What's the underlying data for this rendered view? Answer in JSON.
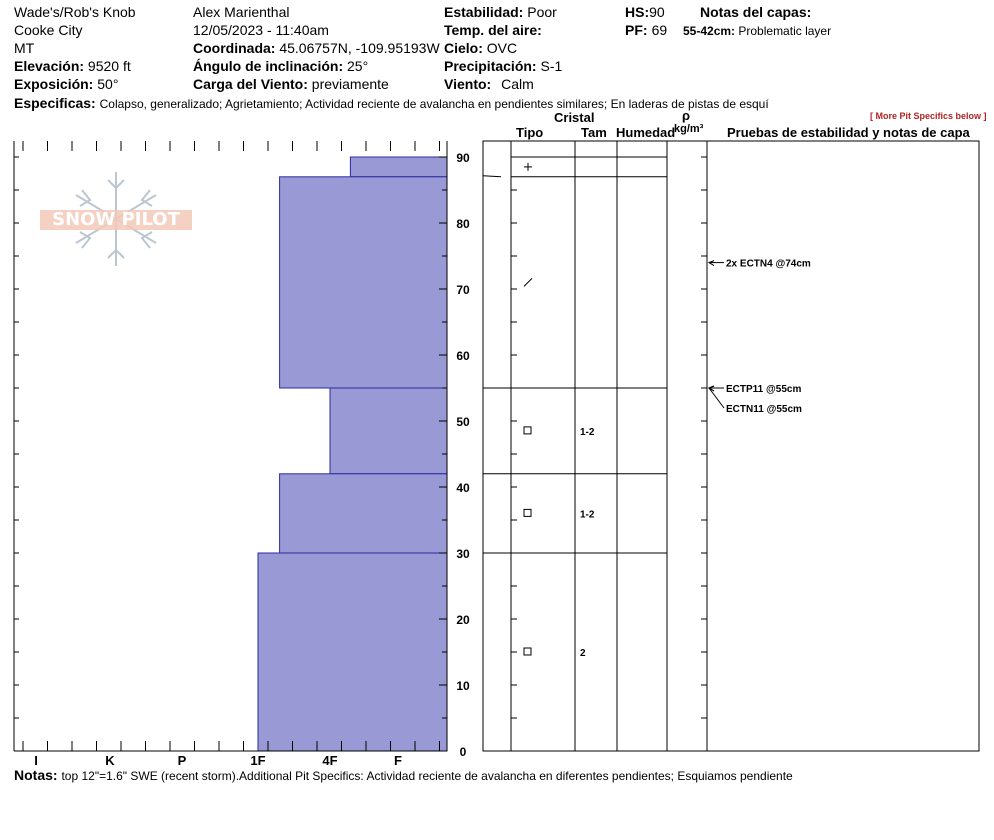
{
  "header": {
    "location": "Wade's/Rob's Knob",
    "city": "Cooke City",
    "state": "MT",
    "elevation_label": "Elevación:",
    "elevation_value": "9520 ft",
    "aspect_label": "Exposición:",
    "aspect_value": "50°",
    "observer": "Alex Marienthal",
    "datetime": "12/05/2023 - 11:40am",
    "coord_label": "Coordinada:",
    "coord_value": "45.06757N, -109.95193W",
    "slope_label": "Ángulo de inclinación:",
    "slope_value": "25°",
    "wind_load_label": "Carga del Viento:",
    "wind_load_value": "previamente",
    "stability_label": "Estabilidad:",
    "stability_value": "Poor",
    "air_temp_label": "Temp. del aire:",
    "air_temp_value": "",
    "sky_label": "Cielo:",
    "sky_value": "OVC",
    "precip_label": "Precipitación:",
    "precip_value": "S-1",
    "wind_label": "Viento:",
    "wind_value": "Calm",
    "hs_label": "HS:",
    "hs_value": "90",
    "pf_label": "PF:",
    "pf_value": "69",
    "layer_notes_label": "Notas del capas:",
    "layer_note_range": "55-42cm:",
    "layer_note_text": "Problematic layer",
    "specifics_label": "Especificas:",
    "specifics_text": "Colapso, generalizado; Agrietamiento; Actividad reciente de avalancha en pendientes similares; En laderas de pistas de esquí",
    "more_specifics": "[ More Pit Specifics below ]"
  },
  "logo": {
    "text": "SNOW PILOT"
  },
  "columns": {
    "cristal": "Cristal",
    "tipo": "Tipo",
    "tam": "Tam",
    "humedad": "Humedad",
    "rho": "ρ",
    "density_unit": "kg/m³",
    "tests_header": "Pruebas de estabilidad y notas de capa"
  },
  "chart_data": {
    "type": "bar",
    "title": "",
    "xlabel": "",
    "ylabel": "",
    "hardness_ticks": [
      "I",
      "K",
      "P",
      "1F",
      "4F",
      "F"
    ],
    "height_ticks": [
      0,
      10,
      20,
      30,
      40,
      50,
      60,
      70,
      80,
      90
    ],
    "ylim": [
      0,
      90
    ],
    "hardness_scale_note": "hardness index: 0=F, 1=4F, 2=1F, 3=P, 4=K, 5=I",
    "layers": [
      {
        "top": 90,
        "bottom": 87,
        "hardness": 0.7
      },
      {
        "top": 87,
        "bottom": 55,
        "hardness": 1.7
      },
      {
        "top": 55,
        "bottom": 42,
        "hardness": 1.0
      },
      {
        "top": 42,
        "bottom": 30,
        "hardness": 1.7
      },
      {
        "top": 30,
        "bottom": 0,
        "hardness": 2.0
      }
    ],
    "layer_lines": [
      90,
      87,
      55,
      42,
      30
    ],
    "grains": [
      {
        "height": 88.5,
        "symbol": "+",
        "size": ""
      },
      {
        "height": 71,
        "symbol": "/",
        "size": ""
      },
      {
        "height": 48.5,
        "symbol": "□",
        "size": "1-2"
      },
      {
        "height": 36,
        "symbol": "□",
        "size": "1-2"
      },
      {
        "height": 15,
        "symbol": "□",
        "size": "2"
      }
    ],
    "tests": [
      {
        "height": 74,
        "label": "2x ECTN4 @74cm"
      },
      {
        "height": 55,
        "label": "ECTP11 @55cm"
      },
      {
        "height": 55,
        "label": "ECTN11 @55cm"
      }
    ]
  },
  "notes": {
    "label": "Notas:",
    "text": "top 12\"=1.6\" SWE (recent storm).Additional Pit Specifics: Actividad reciente de avalancha en diferentes pendientes; Esquiamos pendiente"
  },
  "colors": {
    "bar_fill": "#9999d6",
    "bar_stroke": "#2a2aa0",
    "red_link": "#b22222"
  }
}
